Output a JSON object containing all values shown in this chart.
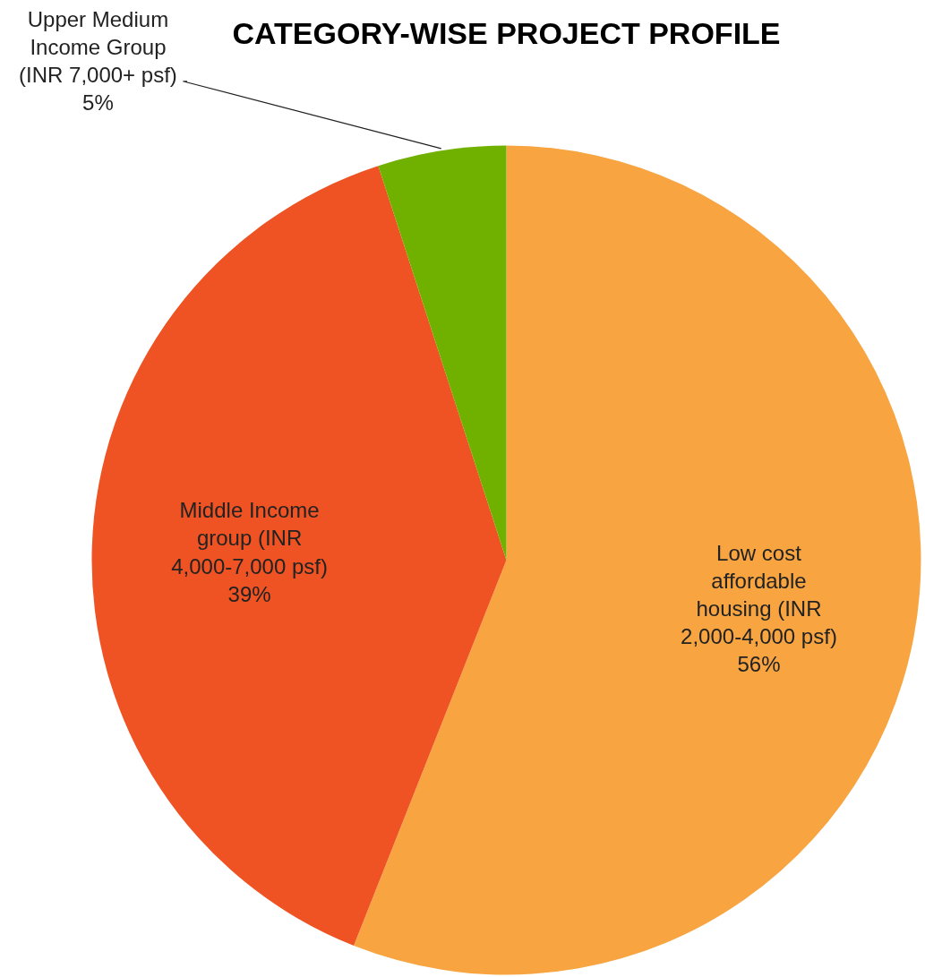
{
  "chart_data": {
    "type": "pie",
    "title": "CATEGORY-WISE PROJECT PROFILE",
    "categories": [
      "Low cost affordable housing (INR 2,000-4,000 psf)",
      "Middle Income group (INR 4,000-7,000 psf)",
      "Upper Medium Income Group (INR 7,000+ psf)"
    ],
    "values": [
      56,
      39,
      5
    ],
    "colors": [
      "#f7a441",
      "#ef5323",
      "#70b100"
    ],
    "value_labels": [
      "56%",
      "39%",
      "5%"
    ]
  }
}
